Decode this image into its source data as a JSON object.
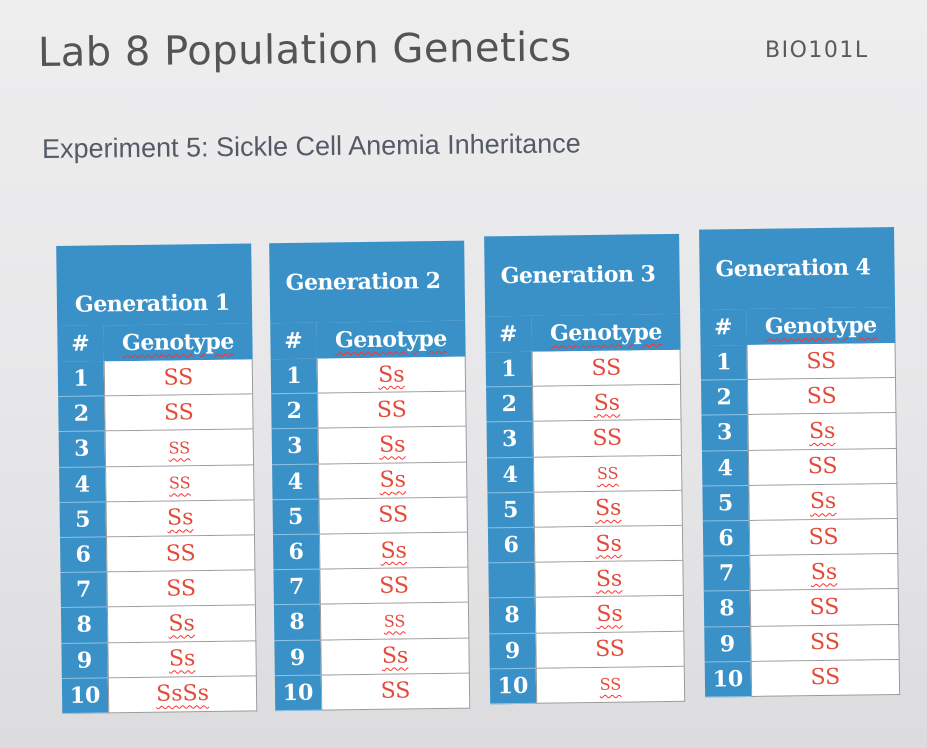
{
  "header": {
    "title": "Lab 8 Population Genetics",
    "course": "BIO101L"
  },
  "experiment": {
    "title": "Experiment 5: Sickle Cell Anemia Inheritance"
  },
  "columns": {
    "num": "#",
    "genotype": "Genotype"
  },
  "generations": [
    {
      "title": "Generation 1",
      "rows": [
        {
          "num": "1",
          "genotype": "SS"
        },
        {
          "num": "2",
          "genotype": "SS"
        },
        {
          "num": "3",
          "genotype": "SS"
        },
        {
          "num": "4",
          "genotype": "SS"
        },
        {
          "num": "5",
          "genotype": "Ss"
        },
        {
          "num": "6",
          "genotype": "SS"
        },
        {
          "num": "7",
          "genotype": "SS"
        },
        {
          "num": "8",
          "genotype": "Ss"
        },
        {
          "num": "9",
          "genotype": "Ss"
        },
        {
          "num": "10",
          "genotype": "SsSs"
        }
      ]
    },
    {
      "title": "Generation 2",
      "rows": [
        {
          "num": "1",
          "genotype": "Ss"
        },
        {
          "num": "2",
          "genotype": "SS"
        },
        {
          "num": "3",
          "genotype": "Ss"
        },
        {
          "num": "4",
          "genotype": "Ss"
        },
        {
          "num": "5",
          "genotype": "SS"
        },
        {
          "num": "6",
          "genotype": "Ss"
        },
        {
          "num": "7",
          "genotype": "SS"
        },
        {
          "num": "8",
          "genotype": "SS"
        },
        {
          "num": "9",
          "genotype": "Ss"
        },
        {
          "num": "10",
          "genotype": "SS"
        }
      ]
    },
    {
      "title": "Generation 3",
      "rows": [
        {
          "num": "1",
          "genotype": "SS"
        },
        {
          "num": "2",
          "genotype": "Ss"
        },
        {
          "num": "3",
          "genotype": "SS"
        },
        {
          "num": "4",
          "genotype": "SS"
        },
        {
          "num": "5",
          "genotype": "Ss"
        },
        {
          "num": "6",
          "genotype": "Ss"
        },
        {
          "num": "",
          "genotype": "Ss"
        },
        {
          "num": "8",
          "genotype": "Ss"
        },
        {
          "num": "9",
          "genotype": "SS"
        },
        {
          "num": "10",
          "genotype": "SS"
        }
      ]
    },
    {
      "title": "Generation 4",
      "rows": [
        {
          "num": "1",
          "genotype": "SS"
        },
        {
          "num": "2",
          "genotype": "SS"
        },
        {
          "num": "3",
          "genotype": "Ss"
        },
        {
          "num": "4",
          "genotype": "SS"
        },
        {
          "num": "5",
          "genotype": "Ss"
        },
        {
          "num": "6",
          "genotype": "SS"
        },
        {
          "num": "7",
          "genotype": "Ss"
        },
        {
          "num": "8",
          "genotype": "SS"
        },
        {
          "num": "9",
          "genotype": "SS"
        },
        {
          "num": "10",
          "genotype": "SS"
        }
      ]
    }
  ]
}
